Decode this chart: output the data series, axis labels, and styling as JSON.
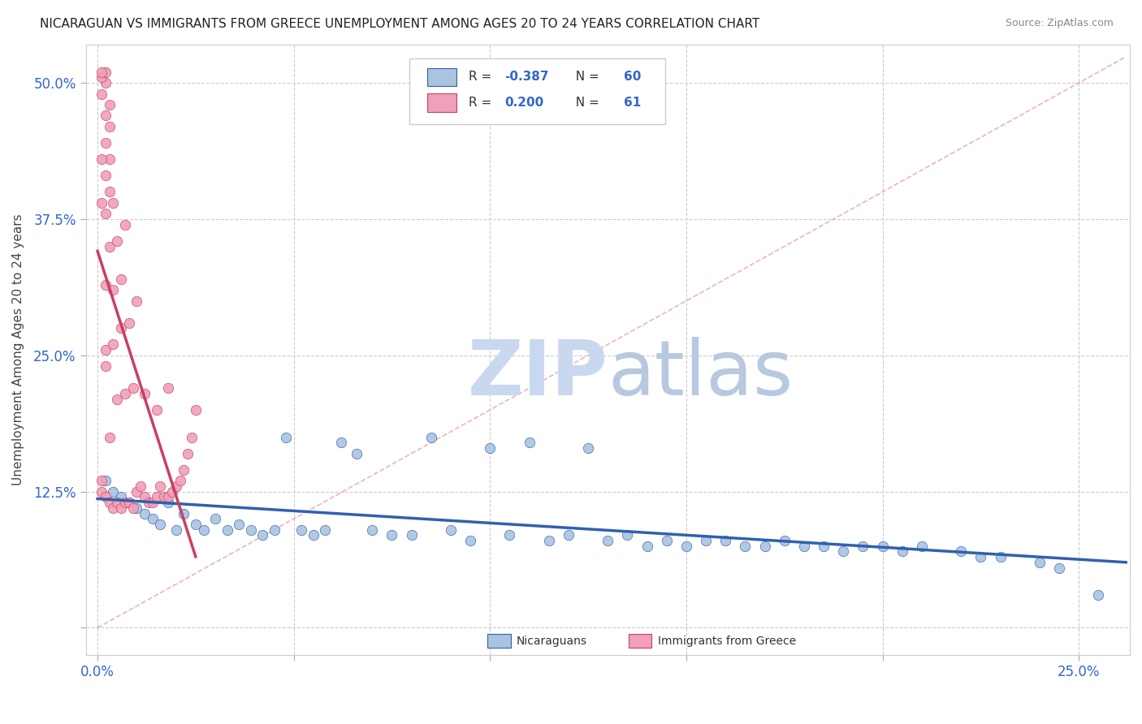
{
  "title": "NICARAGUAN VS IMMIGRANTS FROM GREECE UNEMPLOYMENT AMONG AGES 20 TO 24 YEARS CORRELATION CHART",
  "source": "Source: ZipAtlas.com",
  "xlim": [
    -0.003,
    0.263
  ],
  "ylim": [
    -0.025,
    0.535
  ],
  "xlabel_ticks": [
    0.0,
    0.05,
    0.1,
    0.15,
    0.2,
    0.25
  ],
  "ylabel_ticks": [
    0.0,
    0.125,
    0.25,
    0.375,
    0.5
  ],
  "blue_color": "#aac4e0",
  "blue_line_color": "#3060b0",
  "pink_color": "#f0a0b8",
  "pink_line_color": "#c84060",
  "pink_dash_color": "#e8a0b0",
  "watermark_zip_color": "#c8d8ee",
  "watermark_atlas_color": "#b8c8e0",
  "legend_label_blue": "Nicaraguans",
  "legend_label_pink": "Immigrants from Greece",
  "blue_scatter_x": [
    0.002,
    0.004,
    0.006,
    0.008,
    0.01,
    0.012,
    0.014,
    0.016,
    0.018,
    0.02,
    0.022,
    0.025,
    0.027,
    0.03,
    0.033,
    0.036,
    0.039,
    0.042,
    0.045,
    0.048,
    0.052,
    0.055,
    0.058,
    0.062,
    0.066,
    0.07,
    0.075,
    0.08,
    0.085,
    0.09,
    0.095,
    0.1,
    0.105,
    0.11,
    0.115,
    0.12,
    0.125,
    0.13,
    0.135,
    0.14,
    0.145,
    0.15,
    0.155,
    0.16,
    0.165,
    0.17,
    0.175,
    0.18,
    0.185,
    0.19,
    0.195,
    0.2,
    0.205,
    0.21,
    0.22,
    0.225,
    0.23,
    0.24,
    0.245,
    0.255
  ],
  "blue_scatter_y": [
    0.135,
    0.125,
    0.12,
    0.115,
    0.11,
    0.105,
    0.1,
    0.095,
    0.115,
    0.09,
    0.105,
    0.095,
    0.09,
    0.1,
    0.09,
    0.095,
    0.09,
    0.085,
    0.09,
    0.175,
    0.09,
    0.085,
    0.09,
    0.17,
    0.16,
    0.09,
    0.085,
    0.085,
    0.175,
    0.09,
    0.08,
    0.165,
    0.085,
    0.17,
    0.08,
    0.085,
    0.165,
    0.08,
    0.085,
    0.075,
    0.08,
    0.075,
    0.08,
    0.08,
    0.075,
    0.075,
    0.08,
    0.075,
    0.075,
    0.07,
    0.075,
    0.075,
    0.07,
    0.075,
    0.07,
    0.065,
    0.065,
    0.06,
    0.055,
    0.03
  ],
  "pink_scatter_x": [
    0.001,
    0.002,
    0.003,
    0.004,
    0.005,
    0.006,
    0.007,
    0.008,
    0.009,
    0.01,
    0.011,
    0.012,
    0.013,
    0.014,
    0.015,
    0.016,
    0.017,
    0.018,
    0.019,
    0.02,
    0.021,
    0.022,
    0.023,
    0.024,
    0.025,
    0.003,
    0.005,
    0.007,
    0.009,
    0.012,
    0.015,
    0.018,
    0.002,
    0.004,
    0.006,
    0.008,
    0.01,
    0.002,
    0.004,
    0.006,
    0.003,
    0.005,
    0.007,
    0.002,
    0.003,
    0.004,
    0.002,
    0.003,
    0.002,
    0.003,
    0.002,
    0.003,
    0.001,
    0.002,
    0.001,
    0.002,
    0.001,
    0.002,
    0.001,
    0.001,
    0.001
  ],
  "pink_scatter_y": [
    0.125,
    0.12,
    0.115,
    0.11,
    0.115,
    0.11,
    0.115,
    0.115,
    0.11,
    0.125,
    0.13,
    0.12,
    0.115,
    0.115,
    0.12,
    0.13,
    0.12,
    0.12,
    0.125,
    0.13,
    0.135,
    0.145,
    0.16,
    0.175,
    0.2,
    0.175,
    0.21,
    0.215,
    0.22,
    0.215,
    0.2,
    0.22,
    0.255,
    0.26,
    0.275,
    0.28,
    0.3,
    0.315,
    0.31,
    0.32,
    0.35,
    0.355,
    0.37,
    0.38,
    0.4,
    0.39,
    0.415,
    0.43,
    0.445,
    0.46,
    0.47,
    0.48,
    0.49,
    0.5,
    0.505,
    0.51,
    0.39,
    0.24,
    0.51,
    0.43,
    0.135
  ]
}
